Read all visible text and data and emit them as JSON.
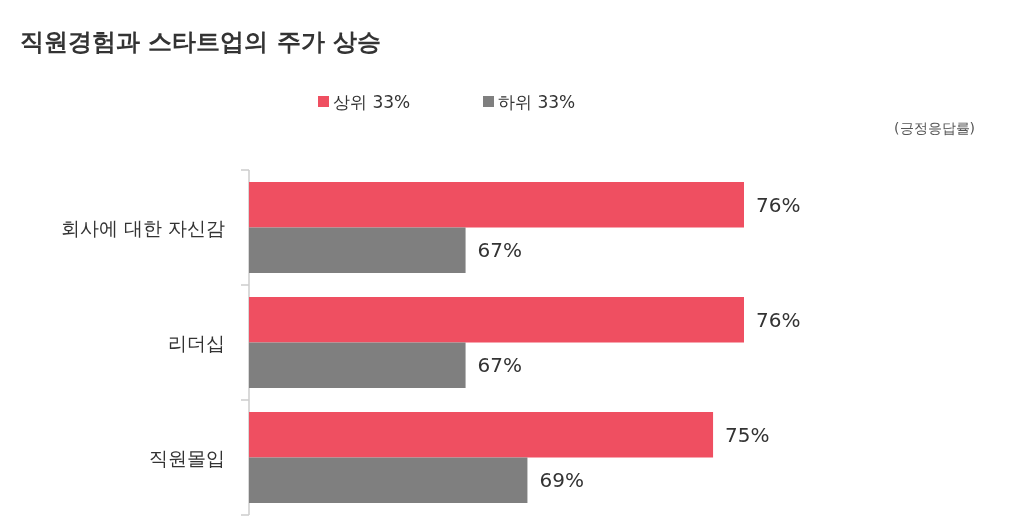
{
  "chart_data": {
    "type": "bar",
    "orientation": "horizontal",
    "title": "직원경험과 스타트업의 주가 상승",
    "categories": [
      "회사에 대한 자신감",
      "리더십",
      "직원몰입"
    ],
    "series": [
      {
        "name": "상위 33%",
        "color": "#ef4f61",
        "values": [
          76,
          76,
          75
        ],
        "value_labels": [
          "76%",
          "76%",
          "75%"
        ]
      },
      {
        "name": "하위 33%",
        "color": "#7f7f7f",
        "values": [
          67,
          67,
          69
        ],
        "value_labels": [
          "67%",
          "67%",
          "69%"
        ]
      }
    ],
    "xlim": [
      60,
      76
    ],
    "legend": "top",
    "annotations": [
      "(긍정응답률)"
    ]
  }
}
